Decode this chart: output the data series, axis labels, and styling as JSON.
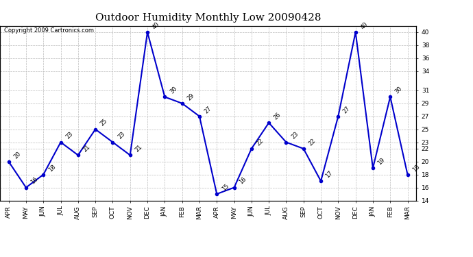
{
  "title": "Outdoor Humidity Monthly Low 20090428",
  "copyright": "Copyright 2009 Cartronics.com",
  "months": [
    "APR",
    "MAY",
    "JUN",
    "JUL",
    "AUG",
    "SEP",
    "OCT",
    "NOV",
    "DEC",
    "JAN",
    "FEB",
    "MAR",
    "APR",
    "MAY",
    "JUN",
    "JUL",
    "AUG",
    "SEP",
    "OCT",
    "NOV",
    "DEC",
    "JAN",
    "FEB",
    "MAR"
  ],
  "values": [
    20,
    16,
    18,
    23,
    21,
    25,
    23,
    21,
    40,
    30,
    29,
    27,
    15,
    16,
    22,
    26,
    23,
    22,
    17,
    27,
    40,
    19,
    30,
    18
  ],
  "ylim_min": 14,
  "ylim_max": 41,
  "yticks": [
    14,
    16,
    18,
    20,
    22,
    23,
    25,
    27,
    29,
    31,
    34,
    36,
    38,
    40
  ],
  "line_color": "#0000CC",
  "marker_color": "#0000CC",
  "bg_color": "#FFFFFF",
  "grid_color": "#BBBBBB",
  "title_fontsize": 11,
  "label_fontsize": 6.5,
  "annot_fontsize": 6,
  "copyright_fontsize": 6
}
